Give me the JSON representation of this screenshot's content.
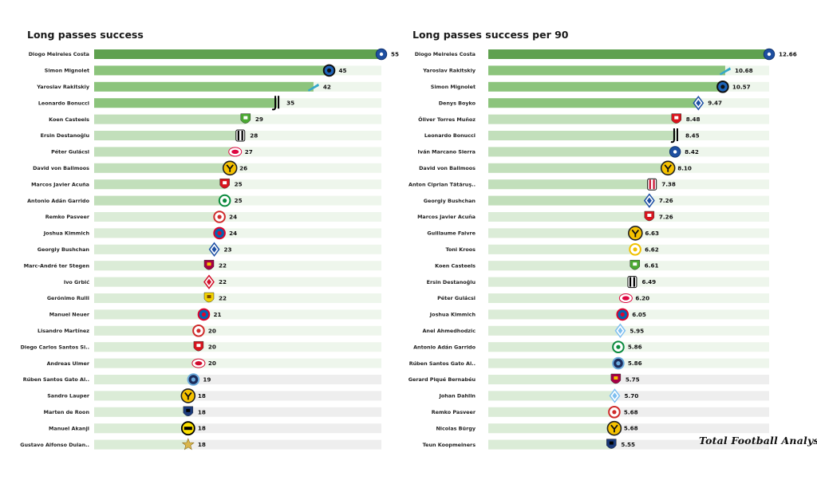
{
  "chart_data": [
    {
      "type": "bar",
      "orientation": "horizontal",
      "title": "Long passes success",
      "categories": [
        "Diogo Meireles Costa",
        "Simon Mignolet",
        "Yaroslav Rakitskiy",
        "Leonardo Bonucci",
        "Koen Casteels",
        "Ersin Destanoğlu",
        "Péter Gulácsi",
        "David von Ballmoos",
        "Marcos Javier Acuña",
        "Antonio Adán Garrido",
        "Remko Pasveer",
        "Joshua Kimmich",
        "Georgiy Bushchan",
        "Marc-André ter Stegen",
        "Ivo Grbić",
        "Gerónimo Rulli",
        "Manuel Neuer",
        "Lisandro Martínez",
        "Diego Carlos Santos Si..",
        "Andreas Ulmer",
        "Rúben  Santos Gato Al..",
        "Sandro Lauper",
        "Marten de Roon",
        "Manuel Akanji",
        "Gustavo Alfonso Dulan.."
      ],
      "values": [
        55,
        45,
        42,
        35,
        29,
        28,
        27,
        26,
        25,
        25,
        24,
        24,
        23,
        22,
        22,
        22,
        21,
        20,
        20,
        20,
        19,
        18,
        18,
        18,
        18
      ],
      "value_labels": [
        "55",
        "45",
        "42",
        "35",
        "29",
        "28",
        "27",
        "26",
        "25",
        "25",
        "24",
        "24",
        "23",
        "22",
        "22",
        "22",
        "21",
        "20",
        "20",
        "20",
        "19",
        "18",
        "18",
        "18",
        "18"
      ],
      "club_icons": [
        "porto-icon",
        "brugge-icon",
        "zenit-icon",
        "juventus-icon",
        "wolfsburg-icon",
        "besiktas-icon",
        "leipzig-icon",
        "young-boys-icon",
        "sevilla-icon",
        "sporting-icon",
        "ajax-icon",
        "bayern-icon",
        "dynamo-kyiv-icon",
        "barcelona-icon",
        "lille-icon",
        "villarreal-icon",
        "bayern-icon",
        "ajax-icon",
        "sevilla-icon",
        "salzburg-icon",
        "man-city-icon",
        "young-boys-icon",
        "atalanta-icon",
        "dortmund-icon",
        "sheriff-icon"
      ],
      "xlim": [
        0,
        55
      ]
    },
    {
      "type": "bar",
      "orientation": "horizontal",
      "title": "Long passes success per 90",
      "categories": [
        "Diogo Meireles Costa",
        "Yaroslav Rakitskiy",
        "Simon Mignolet",
        "Denys Boyko",
        "Óliver Torres Muñoz",
        "Leonardo Bonucci",
        "Iván Marcano Sierra",
        "David von Ballmoos",
        "Anton Ciprian Tătăruş..",
        "Georgiy Bushchan",
        "Marcos Javier Acuña",
        "Guillaume Faivre",
        "Toni Kroos",
        "Koen Casteels",
        "Ersin Destanoğlu",
        "Péter Gulácsi",
        "Joshua Kimmich",
        "Anel Ahmedhodzic",
        "Antonio Adán Garrido",
        "Rúben  Santos Gato Al..",
        "Gerard Piqué Bernabéu",
        "Johan Dahlin",
        "Remko Pasveer",
        "Nicolas Bürgy",
        "Teun Koopmeiners"
      ],
      "values": [
        12.66,
        10.68,
        10.57,
        9.47,
        8.48,
        8.45,
        8.42,
        8.1,
        7.38,
        7.26,
        7.26,
        6.63,
        6.62,
        6.61,
        6.49,
        6.2,
        6.05,
        5.95,
        5.86,
        5.86,
        5.75,
        5.7,
        5.68,
        5.68,
        5.55
      ],
      "value_labels": [
        "12.66",
        "10.68",
        "10.57",
        "9.47",
        "8.48",
        "8.45",
        "8.42",
        "8.10",
        "7.38",
        "7.26",
        "7.26",
        "6.63",
        "6.62",
        "6.61",
        "6.49",
        "6.20",
        "6.05",
        "5.95",
        "5.86",
        "5.86",
        "5.75",
        "5.70",
        "5.68",
        "5.68",
        "5.55"
      ],
      "club_icons": [
        "porto-icon",
        "zenit-icon",
        "brugge-icon",
        "dynamo-kyiv-icon",
        "sevilla-icon",
        "juventus-icon",
        "porto-icon",
        "young-boys-icon",
        "milan-icon",
        "dynamo-kyiv-icon",
        "sevilla-icon",
        "young-boys-icon",
        "real-madrid-icon",
        "wolfsburg-icon",
        "besiktas-icon",
        "leipzig-icon",
        "bayern-icon",
        "malmo-icon",
        "sporting-icon",
        "man-city-icon",
        "barcelona-icon",
        "malmo-icon",
        "ajax-icon",
        "young-boys-icon",
        "atalanta-icon"
      ],
      "xlim": [
        0,
        12.66
      ]
    }
  ],
  "colors": {
    "top_bar": "#5fa14f",
    "high_bar": "#8cc47c",
    "mid_bar": "#c2dfbb",
    "low_bar": "#dbecd7",
    "track": "#eef6ec",
    "lowest_track": "#eeeeee",
    "text": "#222222"
  },
  "watermark": "Total Football Analysis"
}
